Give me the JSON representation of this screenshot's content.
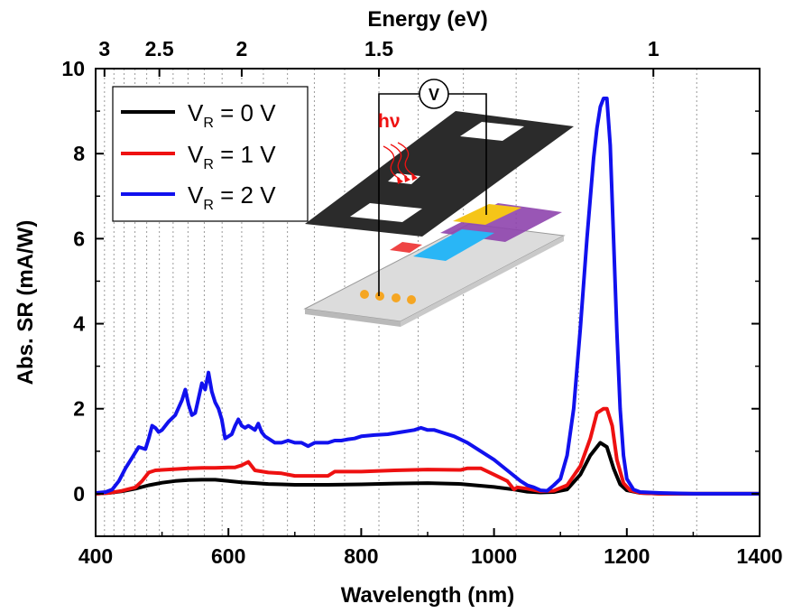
{
  "chart_data": {
    "type": "line",
    "xlabel": "Wavelength (nm)",
    "ylabel": "Abs. SR (mA/W)",
    "top_axis_label": "Energy (eV)",
    "xlim": [
      400,
      1400
    ],
    "ylim": [
      -1,
      10
    ],
    "x_ticks": [
      400,
      600,
      800,
      1000,
      1200,
      1400
    ],
    "y_ticks": [
      0,
      2,
      4,
      6,
      8,
      10
    ],
    "top_ticks": [
      {
        "energy": 3,
        "label": "3"
      },
      {
        "energy": 2.5,
        "label": "2.5"
      },
      {
        "energy": 2,
        "label": "2"
      },
      {
        "energy": 1.5,
        "label": "1.5"
      },
      {
        "energy": 1,
        "label": "1"
      }
    ],
    "energy_gridlines_ev": [
      3,
      2.9,
      2.8,
      2.7,
      2.6,
      2.5,
      2.4,
      2.3,
      2.2,
      2.1,
      2,
      1.9,
      1.8,
      1.7,
      1.6,
      1.5,
      1.4,
      1.3,
      1.2,
      1.1,
      1,
      0.95
    ],
    "legend_position": "top-left",
    "legend": [
      {
        "pre": "V",
        "sub": "R",
        "post": " = 0 V",
        "color": "#000000"
      },
      {
        "pre": "V",
        "sub": "R",
        "post": " = 1 V",
        "color": "#ee1111"
      },
      {
        "pre": "V",
        "sub": "R",
        "post": " = 2 V",
        "color": "#1111ee"
      }
    ],
    "series": [
      {
        "color": "#000000",
        "x": [
          400,
          420,
          440,
          460,
          480,
          500,
          520,
          540,
          560,
          580,
          600,
          620,
          640,
          660,
          680,
          700,
          750,
          800,
          850,
          900,
          950,
          1000,
          1030,
          1050,
          1070,
          1090,
          1110,
          1130,
          1145,
          1160,
          1170,
          1180,
          1190,
          1200,
          1220,
          1250,
          1300,
          1400
        ],
        "y": [
          0,
          0.02,
          0.06,
          0.12,
          0.2,
          0.26,
          0.3,
          0.32,
          0.33,
          0.33,
          0.3,
          0.27,
          0.25,
          0.23,
          0.22,
          0.21,
          0.21,
          0.22,
          0.24,
          0.25,
          0.23,
          0.16,
          0.1,
          0.05,
          0.03,
          0.04,
          0.1,
          0.45,
          0.9,
          1.2,
          1.1,
          0.6,
          0.22,
          0.08,
          0.02,
          0,
          0,
          0
        ]
      },
      {
        "color": "#ee1111",
        "x": [
          400,
          420,
          440,
          460,
          470,
          480,
          490,
          500,
          520,
          540,
          560,
          580,
          600,
          610,
          620,
          630,
          640,
          660,
          680,
          700,
          750,
          760,
          800,
          850,
          900,
          950,
          960,
          980,
          1000,
          1020,
          1030,
          1035,
          1050,
          1070,
          1090,
          1110,
          1130,
          1145,
          1155,
          1165,
          1170,
          1178,
          1185,
          1195,
          1205,
          1220,
          1250,
          1300,
          1400
        ],
        "y": [
          0,
          0.02,
          0.07,
          0.15,
          0.3,
          0.5,
          0.55,
          0.56,
          0.58,
          0.6,
          0.61,
          0.61,
          0.62,
          0.62,
          0.67,
          0.75,
          0.55,
          0.5,
          0.48,
          0.42,
          0.42,
          0.52,
          0.52,
          0.55,
          0.57,
          0.56,
          0.6,
          0.6,
          0.45,
          0.3,
          0.1,
          0.15,
          0.12,
          0.06,
          0.07,
          0.2,
          0.65,
          1.3,
          1.9,
          2.0,
          2.0,
          1.6,
          0.8,
          0.25,
          0.08,
          0.02,
          0,
          0,
          0
        ]
      },
      {
        "color": "#1111ee",
        "x": [
          400,
          415,
          425,
          435,
          445,
          455,
          465,
          475,
          480,
          485,
          490,
          495,
          500,
          510,
          520,
          530,
          535,
          540,
          545,
          550,
          555,
          560,
          565,
          570,
          575,
          580,
          585,
          590,
          595,
          600,
          605,
          610,
          615,
          620,
          625,
          630,
          635,
          640,
          645,
          650,
          655,
          660,
          670,
          680,
          690,
          700,
          710,
          720,
          730,
          740,
          750,
          760,
          770,
          780,
          790,
          800,
          820,
          840,
          860,
          880,
          890,
          900,
          910,
          920,
          940,
          960,
          980,
          1000,
          1020,
          1040,
          1050,
          1060,
          1070,
          1080,
          1090,
          1100,
          1110,
          1120,
          1130,
          1140,
          1150,
          1155,
          1160,
          1165,
          1170,
          1175,
          1180,
          1185,
          1190,
          1195,
          1200,
          1210,
          1220,
          1250,
          1300,
          1400
        ],
        "y": [
          0.02,
          0.04,
          0.1,
          0.3,
          0.6,
          0.85,
          1.1,
          1.05,
          1.3,
          1.6,
          1.55,
          1.45,
          1.5,
          1.7,
          1.85,
          2.2,
          2.45,
          2.1,
          1.85,
          1.9,
          2.25,
          2.6,
          2.45,
          2.85,
          2.4,
          2.15,
          2.0,
          1.75,
          1.3,
          1.35,
          1.4,
          1.6,
          1.75,
          1.6,
          1.55,
          1.6,
          1.55,
          1.5,
          1.65,
          1.45,
          1.35,
          1.3,
          1.2,
          1.2,
          1.25,
          1.2,
          1.2,
          1.12,
          1.2,
          1.2,
          1.2,
          1.25,
          1.25,
          1.28,
          1.3,
          1.35,
          1.38,
          1.4,
          1.45,
          1.5,
          1.55,
          1.5,
          1.5,
          1.45,
          1.35,
          1.2,
          1.0,
          0.8,
          0.55,
          0.3,
          0.2,
          0.15,
          0.08,
          0.07,
          0.2,
          0.35,
          0.9,
          2.0,
          3.9,
          6.0,
          7.9,
          8.6,
          9.1,
          9.3,
          9.3,
          8.2,
          6.0,
          3.8,
          2.0,
          0.9,
          0.35,
          0.1,
          0.04,
          0.02,
          0,
          0
        ]
      }
    ],
    "inset": {
      "kind": "device-schematic",
      "voltmeter_label": "V",
      "light_label": "hν",
      "light_color": "#ee1111"
    }
  }
}
